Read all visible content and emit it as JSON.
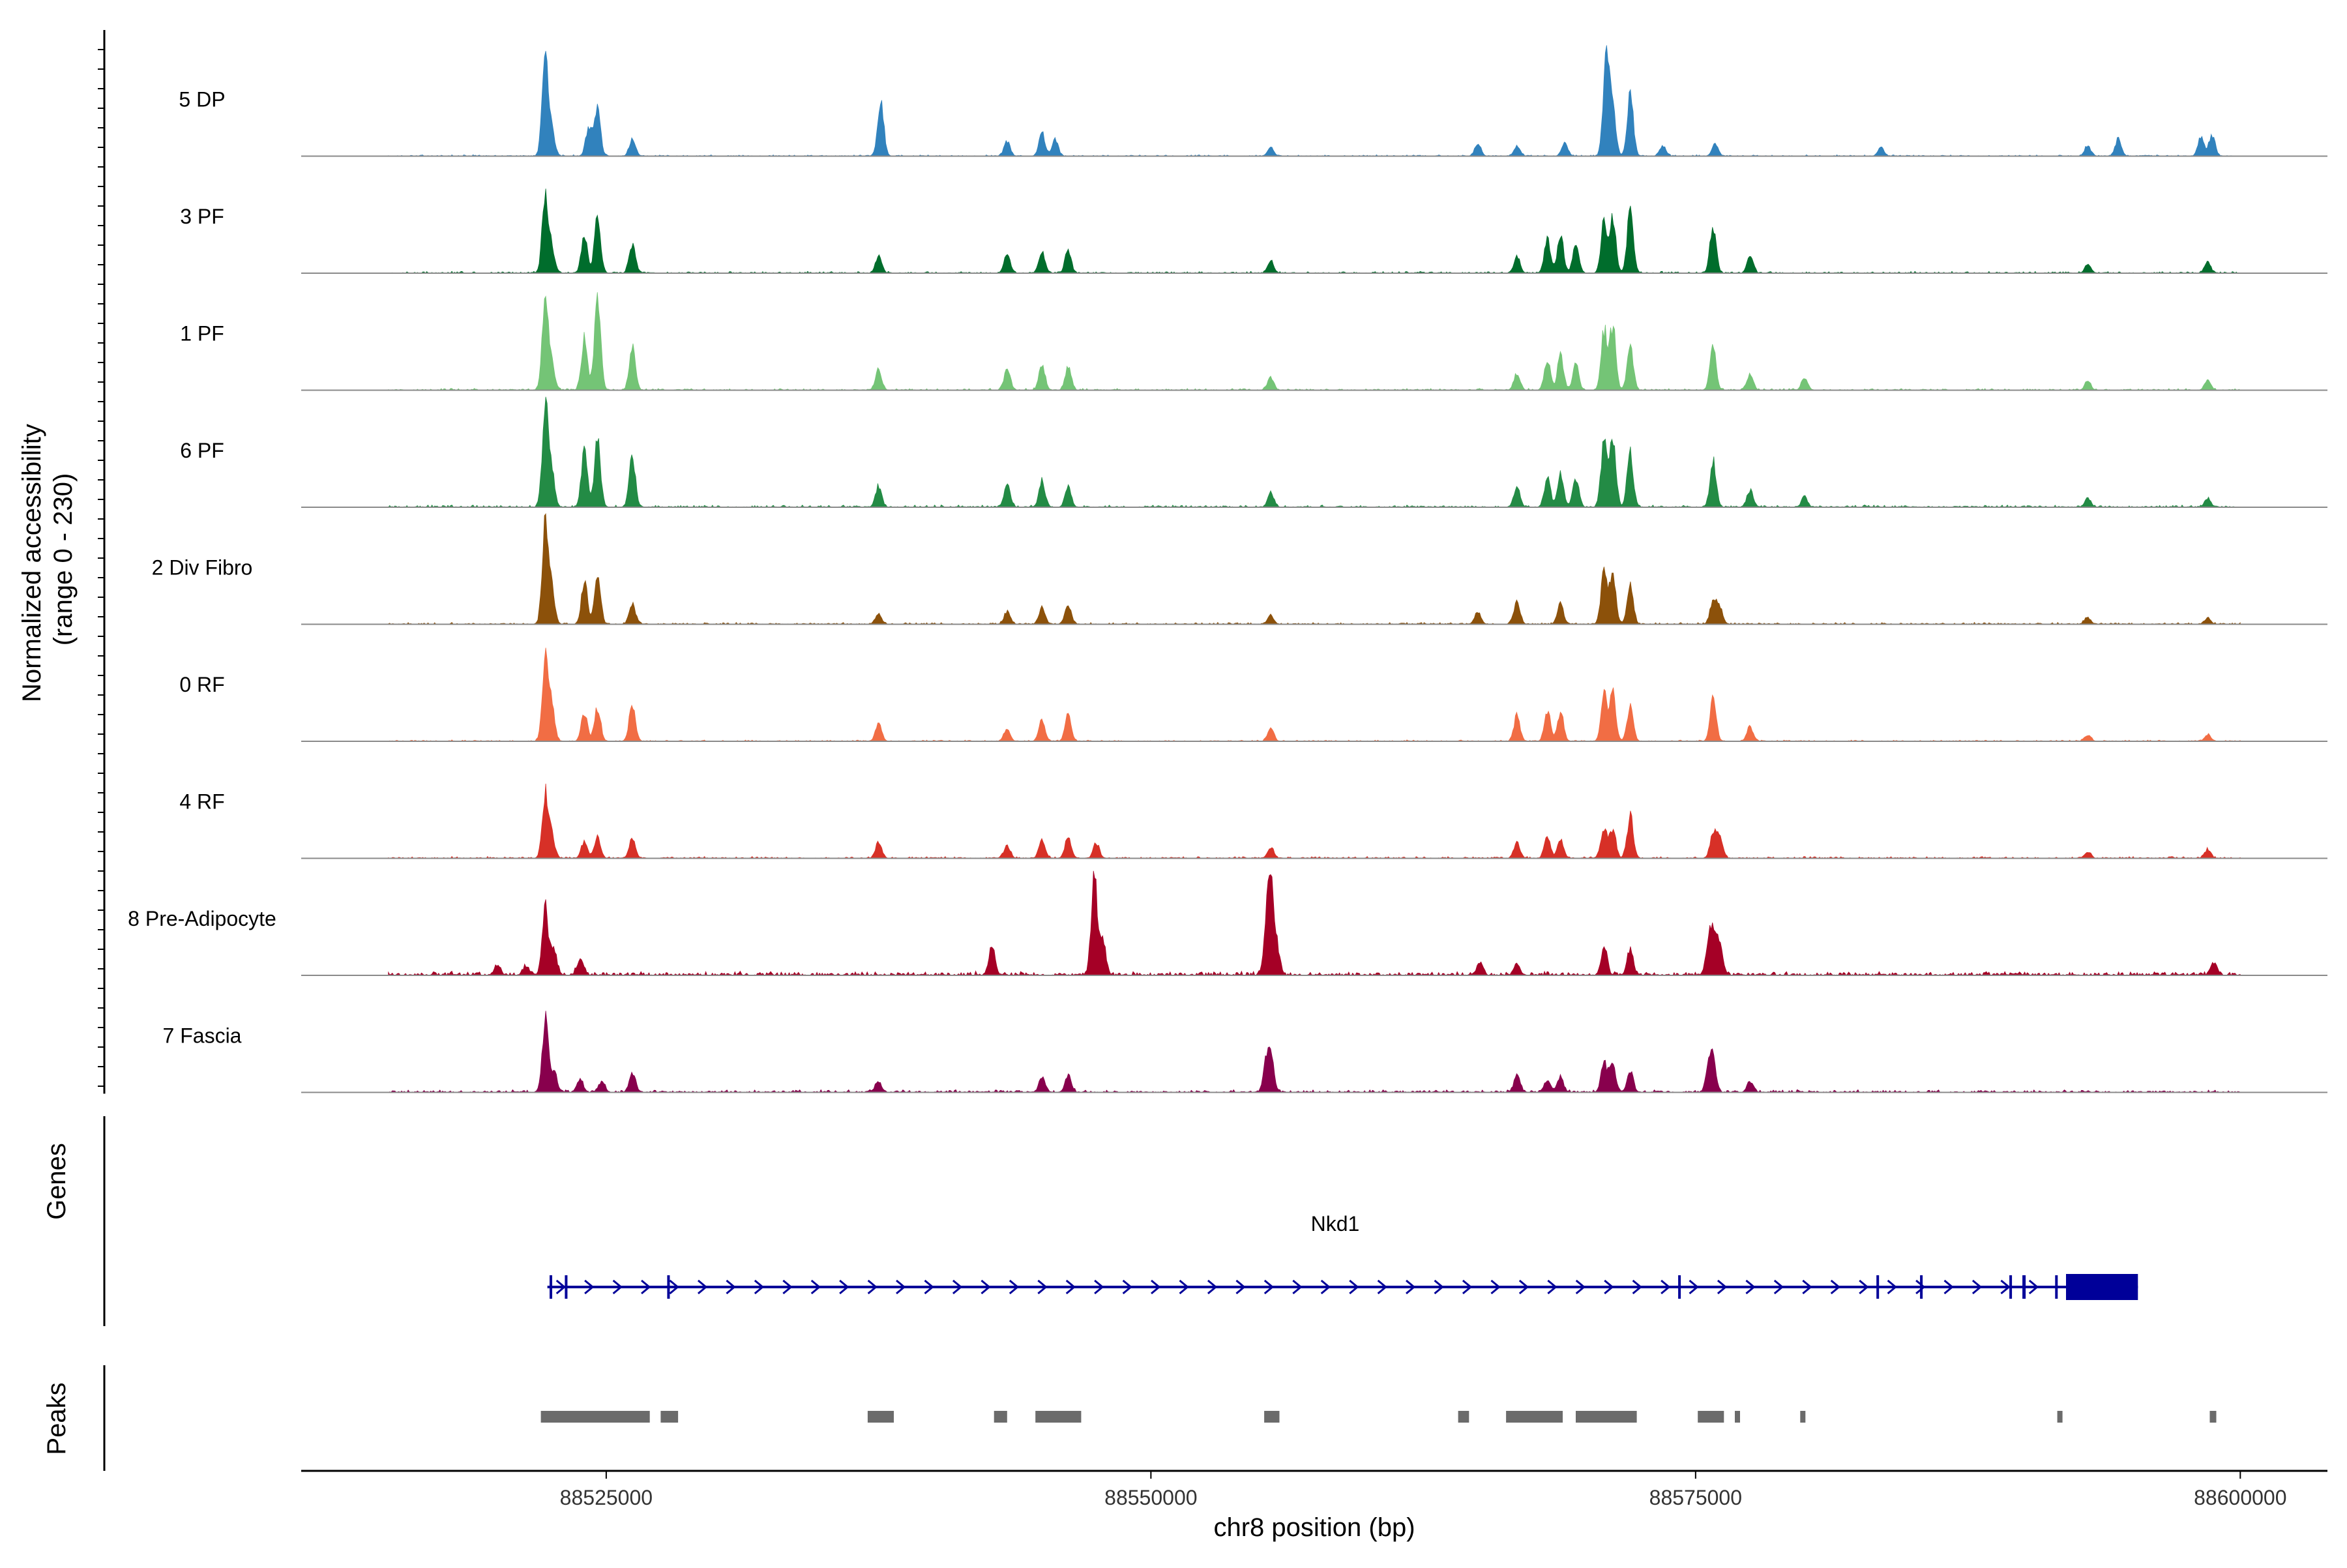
{
  "chart_data": {
    "type": "area",
    "title": "",
    "chromosome": "chr8",
    "xlabel": "chr8 position (bp)",
    "xlim": [
      88511000,
      88604000
    ],
    "x_ticks": [
      88525000,
      88550000,
      88575000,
      88600000
    ],
    "x_tick_labels": [
      "88525000",
      "88550000",
      "88575000",
      "88600000"
    ],
    "coverage": {
      "ylabel_line1": "Normalized accessibility",
      "ylabel_line2": "(range 0 - 230)",
      "ylim": [
        0,
        230
      ],
      "region": [
        88515000,
        88600000
      ],
      "peak_width_bp": 140,
      "tracks": [
        {
          "name": "5 DP",
          "color": "#3182BD",
          "noise": 3,
          "peaks": [
            [
              88522200,
              230
            ],
            [
              88522500,
              60
            ],
            [
              88524200,
              70
            ],
            [
              88524600,
              110
            ],
            [
              88526200,
              40
            ],
            [
              88537600,
              130
            ],
            [
              88543400,
              35
            ],
            [
              88545000,
              55
            ],
            [
              88545600,
              40
            ],
            [
              88555500,
              20
            ],
            [
              88565000,
              30
            ],
            [
              88566800,
              25
            ],
            [
              88569000,
              30
            ],
            [
              88570900,
              240
            ],
            [
              88571200,
              110
            ],
            [
              88572000,
              150
            ],
            [
              88573500,
              25
            ],
            [
              88575900,
              30
            ],
            [
              88583500,
              20
            ],
            [
              88593000,
              25
            ],
            [
              88594400,
              40
            ],
            [
              88598200,
              45
            ],
            [
              88598700,
              50
            ]
          ]
        },
        {
          "name": "3 PF",
          "color": "#006D2C",
          "noise": 4,
          "peaks": [
            [
              88522200,
              180
            ],
            [
              88522500,
              60
            ],
            [
              88524000,
              90
            ],
            [
              88524600,
              130
            ],
            [
              88526200,
              70
            ],
            [
              88537500,
              40
            ],
            [
              88543400,
              45
            ],
            [
              88545000,
              50
            ],
            [
              88546200,
              55
            ],
            [
              88555500,
              30
            ],
            [
              88566800,
              40
            ],
            [
              88568200,
              80
            ],
            [
              88568800,
              90
            ],
            [
              88569500,
              70
            ],
            [
              88570800,
              120
            ],
            [
              88571200,
              130
            ],
            [
              88572000,
              150
            ],
            [
              88575800,
              110
            ],
            [
              88577500,
              40
            ],
            [
              88593000,
              20
            ],
            [
              88598500,
              25
            ]
          ]
        },
        {
          "name": "1 PF",
          "color": "#74C476",
          "noise": 4,
          "peaks": [
            [
              88522200,
              200
            ],
            [
              88522500,
              60
            ],
            [
              88524000,
              120
            ],
            [
              88524600,
              230
            ],
            [
              88526200,
              100
            ],
            [
              88537500,
              50
            ],
            [
              88543400,
              50
            ],
            [
              88545000,
              60
            ],
            [
              88546200,
              55
            ],
            [
              88555500,
              30
            ],
            [
              88566800,
              40
            ],
            [
              88568200,
              70
            ],
            [
              88568800,
              80
            ],
            [
              88569500,
              60
            ],
            [
              88570800,
              140
            ],
            [
              88571200,
              150
            ],
            [
              88572000,
              100
            ],
            [
              88575800,
              100
            ],
            [
              88577500,
              40
            ],
            [
              88580000,
              30
            ],
            [
              88593000,
              20
            ],
            [
              88598500,
              25
            ]
          ]
        },
        {
          "name": "6 PF",
          "color": "#238B45",
          "noise": 5,
          "peaks": [
            [
              88522200,
              230
            ],
            [
              88522500,
              80
            ],
            [
              88524000,
              140
            ],
            [
              88524600,
              160
            ],
            [
              88526200,
              120
            ],
            [
              88537500,
              50
            ],
            [
              88543400,
              50
            ],
            [
              88545000,
              60
            ],
            [
              88546200,
              50
            ],
            [
              88555500,
              35
            ],
            [
              88566800,
              50
            ],
            [
              88568200,
              70
            ],
            [
              88568800,
              80
            ],
            [
              88569500,
              70
            ],
            [
              88570800,
              160
            ],
            [
              88571200,
              170
            ],
            [
              88572000,
              130
            ],
            [
              88575800,
              110
            ],
            [
              88577500,
              40
            ],
            [
              88580000,
              25
            ],
            [
              88593000,
              20
            ],
            [
              88598500,
              20
            ]
          ]
        },
        {
          "name": "2 Div Fibro",
          "color": "#8C510A",
          "noise": 4,
          "peaks": [
            [
              88522200,
              230
            ],
            [
              88522500,
              80
            ],
            [
              88524000,
              100
            ],
            [
              88524600,
              120
            ],
            [
              88526200,
              50
            ],
            [
              88537500,
              25
            ],
            [
              88543400,
              30
            ],
            [
              88545000,
              40
            ],
            [
              88546200,
              45
            ],
            [
              88555500,
              20
            ],
            [
              88565000,
              30
            ],
            [
              88566800,
              55
            ],
            [
              88568800,
              50
            ],
            [
              88570800,
              130
            ],
            [
              88571200,
              120
            ],
            [
              88572000,
              90
            ],
            [
              88575800,
              55
            ],
            [
              88576100,
              40
            ],
            [
              88593000,
              15
            ],
            [
              88598500,
              15
            ]
          ]
        },
        {
          "name": "0 RF",
          "color": "#F16D44",
          "noise": 3,
          "peaks": [
            [
              88522200,
              190
            ],
            [
              88522500,
              80
            ],
            [
              88524000,
              70
            ],
            [
              88524600,
              80
            ],
            [
              88526200,
              90
            ],
            [
              88537500,
              45
            ],
            [
              88543400,
              30
            ],
            [
              88545000,
              50
            ],
            [
              88546200,
              60
            ],
            [
              88555500,
              30
            ],
            [
              88566800,
              60
            ],
            [
              88568200,
              70
            ],
            [
              88568800,
              70
            ],
            [
              88570800,
              110
            ],
            [
              88571200,
              110
            ],
            [
              88572000,
              80
            ],
            [
              88575800,
              100
            ],
            [
              88577500,
              35
            ],
            [
              88593000,
              15
            ],
            [
              88598500,
              15
            ]
          ]
        },
        {
          "name": "4 RF",
          "color": "#D73027",
          "noise": 4,
          "peaks": [
            [
              88522200,
              150
            ],
            [
              88522500,
              50
            ],
            [
              88524000,
              40
            ],
            [
              88524600,
              50
            ],
            [
              88526200,
              45
            ],
            [
              88537500,
              40
            ],
            [
              88543400,
              30
            ],
            [
              88545000,
              45
            ],
            [
              88546200,
              50
            ],
            [
              88547500,
              35
            ],
            [
              88555500,
              25
            ],
            [
              88566800,
              40
            ],
            [
              88568200,
              50
            ],
            [
              88568800,
              45
            ],
            [
              88570800,
              70
            ],
            [
              88571200,
              70
            ],
            [
              88572000,
              100
            ],
            [
              88575800,
              60
            ],
            [
              88576100,
              55
            ],
            [
              88593000,
              15
            ],
            [
              88598500,
              20
            ]
          ]
        },
        {
          "name": "8 Pre-Adipocyte",
          "color": "#A50026",
          "noise": 9,
          "peaks": [
            [
              88520000,
              25
            ],
            [
              88521300,
              20
            ],
            [
              88522200,
              160
            ],
            [
              88522600,
              60
            ],
            [
              88523800,
              40
            ],
            [
              88542700,
              70
            ],
            [
              88547400,
              230
            ],
            [
              88547800,
              80
            ],
            [
              88555300,
              90
            ],
            [
              88555500,
              190
            ],
            [
              88555800,
              60
            ],
            [
              88565100,
              30
            ],
            [
              88566800,
              25
            ],
            [
              88570800,
              70
            ],
            [
              88572000,
              60
            ],
            [
              88575600,
              70
            ],
            [
              88575800,
              80
            ],
            [
              88576100,
              70
            ],
            [
              88598800,
              30
            ]
          ]
        },
        {
          "name": "7 Fascia",
          "color": "#88004D",
          "noise": 6,
          "peaks": [
            [
              88522200,
              170
            ],
            [
              88522600,
              50
            ],
            [
              88523800,
              30
            ],
            [
              88524800,
              25
            ],
            [
              88526200,
              45
            ],
            [
              88537500,
              25
            ],
            [
              88545000,
              35
            ],
            [
              88546200,
              40
            ],
            [
              88555300,
              60
            ],
            [
              88555500,
              90
            ],
            [
              88566800,
              40
            ],
            [
              88568200,
              30
            ],
            [
              88568800,
              35
            ],
            [
              88570800,
              70
            ],
            [
              88571200,
              65
            ],
            [
              88572000,
              50
            ],
            [
              88575600,
              60
            ],
            [
              88575800,
              65
            ],
            [
              88577500,
              25
            ]
          ]
        }
      ]
    },
    "genes": {
      "label": "Genes",
      "gene_name": "Nkd1",
      "strand": "+",
      "color": "#000099",
      "start": 88522300,
      "end": 88595300,
      "exons": [
        [
          88522400,
          88522450
        ],
        [
          88523100,
          88523200
        ],
        [
          88527800,
          88527900
        ],
        [
          88574200,
          88574270
        ],
        [
          88583300,
          88583400
        ],
        [
          88585300,
          88585400
        ],
        [
          88589400,
          88589500
        ],
        [
          88590000,
          88590150
        ],
        [
          88591500,
          88591600
        ],
        [
          88592000,
          88595300
        ]
      ]
    },
    "peaks": {
      "label": "Peaks",
      "color": "#6B6B6B",
      "regions": [
        [
          88522000,
          88527000
        ],
        [
          88527500,
          88528300
        ],
        [
          88537000,
          88538200
        ],
        [
          88542800,
          88543400
        ],
        [
          88544700,
          88546800
        ],
        [
          88555200,
          88555900
        ],
        [
          88564100,
          88564600
        ],
        [
          88566300,
          88568900
        ],
        [
          88569500,
          88572300
        ],
        [
          88575100,
          88576300
        ],
        [
          88576800,
          88577000
        ],
        [
          88579800,
          88580000
        ],
        [
          88591600,
          88591800
        ],
        [
          88598600,
          88598900
        ]
      ]
    }
  }
}
